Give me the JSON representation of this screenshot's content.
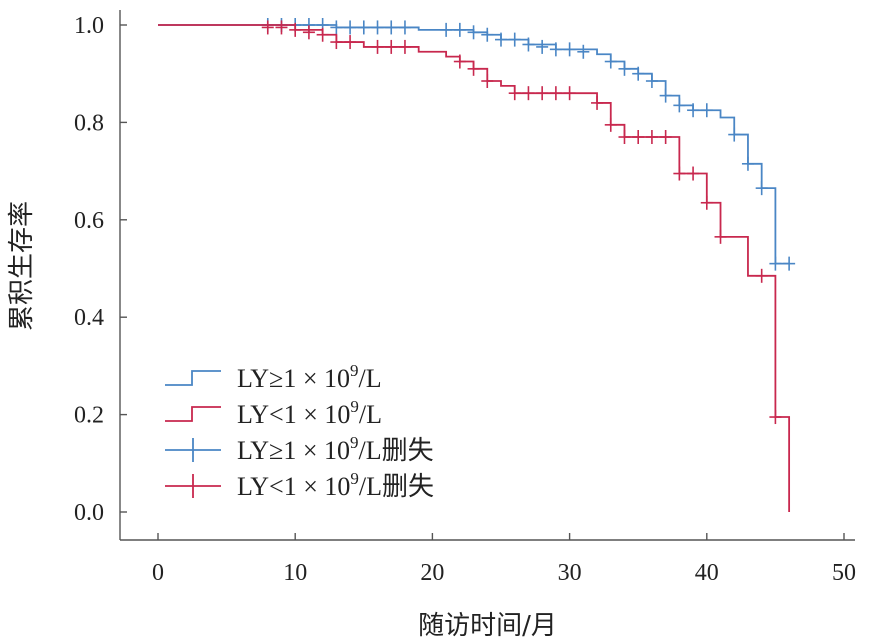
{
  "chart_data": {
    "type": "line",
    "subtype": "kaplan-meier",
    "xlabel": "随访时间/月",
    "ylabel": "累积生存率",
    "xlim": [
      0,
      50
    ],
    "ylim": [
      0.0,
      1.0
    ],
    "xticks": [
      0,
      10,
      20,
      30,
      40,
      50
    ],
    "yticks": [
      0.0,
      0.2,
      0.4,
      0.6,
      0.8,
      1.0
    ],
    "ytick_labels": [
      "0.0",
      "0.2",
      "0.4",
      "0.6",
      "0.8",
      "1.0"
    ],
    "legend_position": "bottom-left",
    "series": [
      {
        "name": "LY≥1 × 10^9/L",
        "color": "#4a86c5",
        "steps": [
          [
            0,
            1.0
          ],
          [
            13,
            0.995
          ],
          [
            19,
            0.99
          ],
          [
            23,
            0.985
          ],
          [
            24,
            0.98
          ],
          [
            25,
            0.97
          ],
          [
            27,
            0.96
          ],
          [
            29,
            0.95
          ],
          [
            32,
            0.94
          ],
          [
            33,
            0.925
          ],
          [
            34,
            0.91
          ],
          [
            35,
            0.9
          ],
          [
            36,
            0.885
          ],
          [
            37,
            0.855
          ],
          [
            38,
            0.835
          ],
          [
            39,
            0.825
          ],
          [
            41,
            0.81
          ],
          [
            42,
            0.775
          ],
          [
            43,
            0.715
          ],
          [
            44,
            0.665
          ],
          [
            45,
            0.51
          ],
          [
            46,
            0.51
          ]
        ],
        "censored": [
          [
            8,
            1.0
          ],
          [
            9,
            1.0
          ],
          [
            10,
            1.0
          ],
          [
            11,
            1.0
          ],
          [
            12,
            1.0
          ],
          [
            13,
            0.995
          ],
          [
            14,
            0.995
          ],
          [
            15,
            0.995
          ],
          [
            16,
            0.995
          ],
          [
            17,
            0.995
          ],
          [
            18,
            0.995
          ],
          [
            21,
            0.99
          ],
          [
            22,
            0.99
          ],
          [
            23,
            0.985
          ],
          [
            24,
            0.98
          ],
          [
            25,
            0.97
          ],
          [
            26,
            0.97
          ],
          [
            27,
            0.96
          ],
          [
            28,
            0.955
          ],
          [
            29,
            0.95
          ],
          [
            30,
            0.95
          ],
          [
            31,
            0.945
          ],
          [
            33,
            0.925
          ],
          [
            34,
            0.91
          ],
          [
            35,
            0.9
          ],
          [
            36,
            0.885
          ],
          [
            37,
            0.855
          ],
          [
            38,
            0.835
          ],
          [
            39,
            0.825
          ],
          [
            40,
            0.825
          ],
          [
            42,
            0.775
          ],
          [
            43,
            0.715
          ],
          [
            44,
            0.665
          ],
          [
            45,
            0.51
          ],
          [
            46,
            0.51
          ]
        ]
      },
      {
        "name": "LY<1 × 10^9/L",
        "color": "#c8284e",
        "steps": [
          [
            0,
            1.0
          ],
          [
            10,
            0.99
          ],
          [
            12,
            0.98
          ],
          [
            13,
            0.965
          ],
          [
            15,
            0.955
          ],
          [
            19,
            0.945
          ],
          [
            21,
            0.935
          ],
          [
            22,
            0.925
          ],
          [
            23,
            0.91
          ],
          [
            24,
            0.885
          ],
          [
            25,
            0.875
          ],
          [
            26,
            0.86
          ],
          [
            32,
            0.84
          ],
          [
            33,
            0.795
          ],
          [
            34,
            0.77
          ],
          [
            38,
            0.695
          ],
          [
            40,
            0.635
          ],
          [
            41,
            0.565
          ],
          [
            43,
            0.485
          ],
          [
            45,
            0.195
          ],
          [
            46,
            0.0
          ]
        ],
        "censored": [
          [
            8,
            0.995
          ],
          [
            9,
            0.995
          ],
          [
            10,
            0.99
          ],
          [
            11,
            0.985
          ],
          [
            12,
            0.98
          ],
          [
            13,
            0.965
          ],
          [
            14,
            0.965
          ],
          [
            16,
            0.955
          ],
          [
            17,
            0.955
          ],
          [
            18,
            0.955
          ],
          [
            22,
            0.925
          ],
          [
            23,
            0.91
          ],
          [
            24,
            0.885
          ],
          [
            26,
            0.86
          ],
          [
            27,
            0.86
          ],
          [
            28,
            0.86
          ],
          [
            29,
            0.86
          ],
          [
            30,
            0.86
          ],
          [
            32,
            0.84
          ],
          [
            33,
            0.795
          ],
          [
            34,
            0.77
          ],
          [
            35,
            0.77
          ],
          [
            36,
            0.77
          ],
          [
            37,
            0.77
          ],
          [
            38,
            0.695
          ],
          [
            39,
            0.695
          ],
          [
            40,
            0.635
          ],
          [
            41,
            0.565
          ],
          [
            44,
            0.485
          ],
          [
            45,
            0.195
          ]
        ]
      }
    ],
    "legend": [
      {
        "prefix": "LY≥1 × 10",
        "sup": "9",
        "suffix": "/L",
        "extra": "",
        "kind": "line",
        "series": 0
      },
      {
        "prefix": "LY<1 × 10",
        "sup": "9",
        "suffix": "/L",
        "extra": "",
        "kind": "line",
        "series": 1
      },
      {
        "prefix": "LY≥1 × 10",
        "sup": "9",
        "suffix": "/L",
        "extra": "删失",
        "kind": "censor",
        "series": 0
      },
      {
        "prefix": "LY<1 × 10",
        "sup": "9",
        "suffix": "/L",
        "extra": "删失",
        "kind": "censor",
        "series": 1
      }
    ]
  }
}
